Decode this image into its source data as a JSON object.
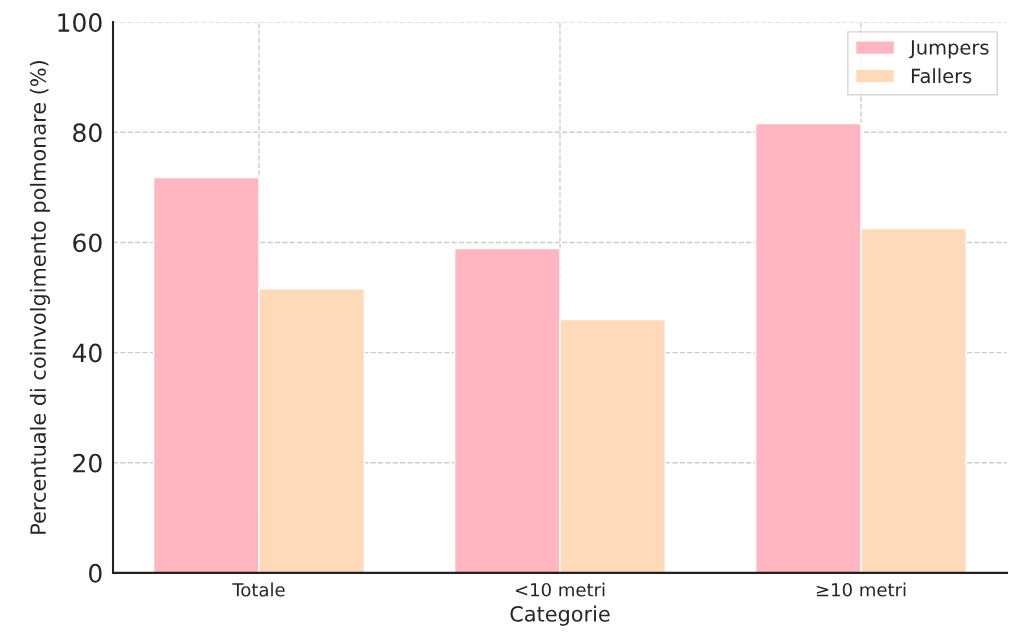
{
  "chart_data": {
    "type": "bar",
    "xlabel": "Categorie",
    "ylabel": "Percentuale di coinvolgimento polmonare (%)",
    "categories": [
      "Totale",
      "<10 metri",
      "≥10 metri"
    ],
    "series": [
      {
        "name": "Jumpers",
        "color": "#ffb6c1",
        "values": [
          71.8,
          58.9,
          81.6
        ]
      },
      {
        "name": "Fallers",
        "color": "#ffdab9",
        "values": [
          51.6,
          46.0,
          62.5
        ]
      }
    ],
    "ylim": [
      0,
      100
    ],
    "yticks": [
      0,
      20,
      40,
      60,
      80,
      100
    ],
    "grid": true,
    "legend": "top right"
  }
}
